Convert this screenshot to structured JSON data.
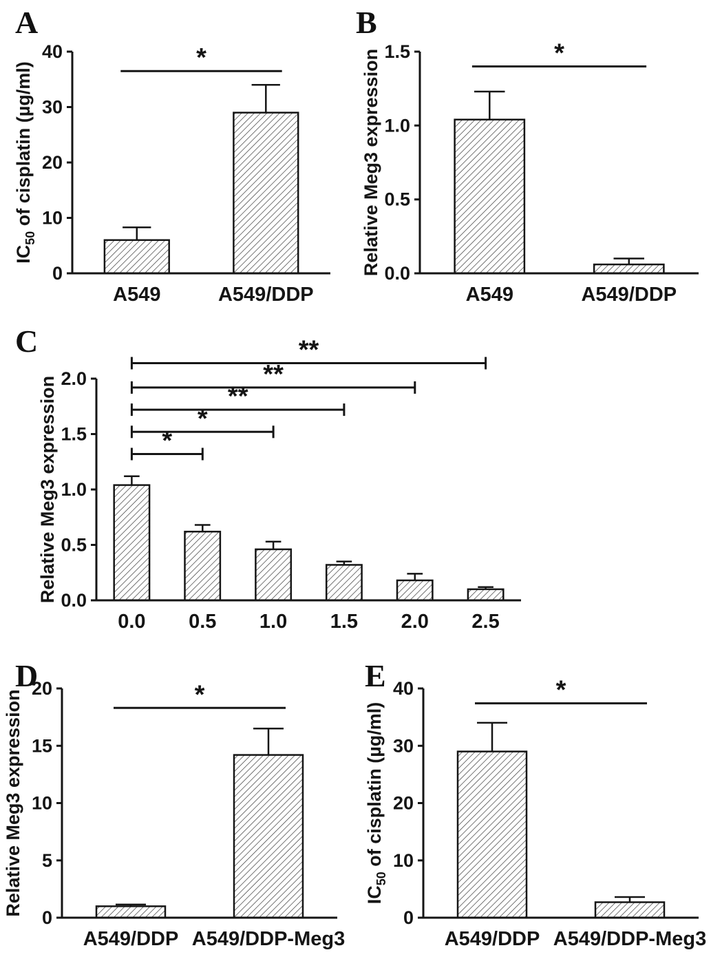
{
  "figure": {
    "background": "#ffffff",
    "ink_color": "#151515",
    "bar_fill": "#ffffff",
    "hatch_color": "#3a3a3a"
  },
  "panels": [
    {
      "letter": "A"
    },
    {
      "letter": "B"
    },
    {
      "letter": "C"
    },
    {
      "letter": "D"
    },
    {
      "letter": "E"
    }
  ],
  "chart_data": [
    {
      "type": "bar",
      "panel": "A",
      "categories": [
        "A549",
        "A549/DDP"
      ],
      "values": [
        6,
        29
      ],
      "errors": [
        2.3,
        5
      ],
      "ylabel": "IC50 of cisplatin (µg/ml)",
      "ylabel_parts": [
        {
          "text": "IC"
        },
        {
          "text": "50",
          "sub": true
        },
        {
          "text": " of cisplatin (µg/ml)"
        }
      ],
      "ylim": [
        0,
        40
      ],
      "yticks": [
        "0",
        "10",
        "20",
        "30",
        "40"
      ],
      "grid": false,
      "legend": false,
      "significance": [
        {
          "from": 0,
          "to": 1,
          "label": "*",
          "y": 36.5
        }
      ],
      "sig_tick_ends": false
    },
    {
      "type": "bar",
      "panel": "B",
      "categories": [
        "A549",
        "A549/DDP"
      ],
      "values": [
        1.04,
        0.06
      ],
      "errors": [
        0.19,
        0.04
      ],
      "ylabel": "Relative Meg3 expression",
      "ylim": [
        0,
        1.5
      ],
      "yticks": [
        "0.0",
        "0.5",
        "1.0",
        "1.5"
      ],
      "grid": false,
      "legend": false,
      "significance": [
        {
          "from": 0,
          "to": 1,
          "label": "*",
          "y": 1.4
        }
      ],
      "sig_tick_ends": false
    },
    {
      "type": "bar",
      "panel": "C",
      "categories": [
        "0.0",
        "0.5",
        "1.0",
        "1.5",
        "2.0",
        "2.5"
      ],
      "values": [
        1.04,
        0.62,
        0.46,
        0.32,
        0.18,
        0.1
      ],
      "errors": [
        0.08,
        0.06,
        0.07,
        0.03,
        0.06,
        0.02
      ],
      "ylabel": "Relative Meg3 expression",
      "ylim": [
        0,
        2
      ],
      "yticks": [
        "0.0",
        "0.5",
        "1.0",
        "1.5",
        "2.0"
      ],
      "grid": false,
      "legend": false,
      "significance": [
        {
          "from": 0,
          "to": 1,
          "label": "*",
          "y": 1.32
        },
        {
          "from": 0,
          "to": 2,
          "label": "*",
          "y": 1.52
        },
        {
          "from": 0,
          "to": 3,
          "label": "**",
          "y": 1.72
        },
        {
          "from": 0,
          "to": 4,
          "label": "**",
          "y": 1.92
        },
        {
          "from": 0,
          "to": 5,
          "label": "**",
          "y": 2.14
        }
      ],
      "sig_tick_ends": true
    },
    {
      "type": "bar",
      "panel": "D",
      "categories": [
        "A549/DDP",
        "A549/DDP-Meg3"
      ],
      "values": [
        1,
        14.2
      ],
      "errors": [
        0.15,
        2.3
      ],
      "ylabel": "Relative Meg3 expression",
      "ylim": [
        0,
        20
      ],
      "yticks": [
        "0",
        "5",
        "10",
        "15",
        "20"
      ],
      "grid": false,
      "legend": false,
      "significance": [
        {
          "from": 0,
          "to": 1,
          "label": "*",
          "y": 18.3
        }
      ],
      "sig_tick_ends": false
    },
    {
      "type": "bar",
      "panel": "E",
      "categories": [
        "A549/DDP",
        "A549/DDP-Meg3"
      ],
      "values": [
        29,
        2.7
      ],
      "errors": [
        5,
        0.9
      ],
      "ylabel": "IC50 of cisplatin (µg/ml)",
      "ylabel_parts": [
        {
          "text": "IC"
        },
        {
          "text": "50",
          "sub": true
        },
        {
          "text": " of cisplatin (µg/ml)"
        }
      ],
      "ylim": [
        0,
        40
      ],
      "yticks": [
        "0",
        "10",
        "20",
        "30",
        "40"
      ],
      "grid": false,
      "legend": false,
      "significance": [
        {
          "from": 0,
          "to": 1,
          "label": "*",
          "y": 37.4
        }
      ],
      "sig_tick_ends": false
    }
  ]
}
